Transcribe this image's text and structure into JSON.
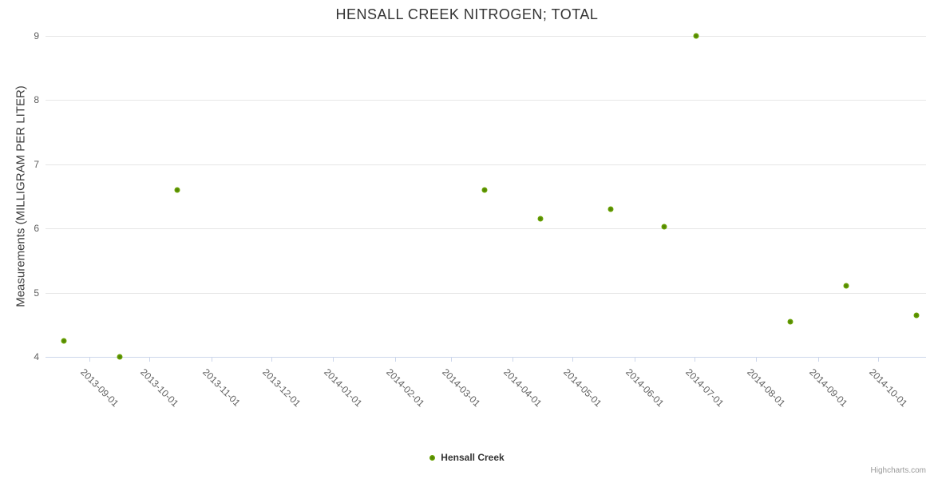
{
  "chart_data": {
    "type": "scatter",
    "title": "HENSALL CREEK NITROGEN; TOTAL",
    "xlabel": "",
    "ylabel": "Measurements (MILLIGRAM PER LITER)",
    "ylim": [
      4,
      9
    ],
    "yticks": [
      4,
      5,
      6,
      7,
      8,
      9
    ],
    "grid": true,
    "x_range": [
      "2013-08-10",
      "2014-10-25"
    ],
    "x_ticks": [
      "2013-09-01",
      "2013-10-01",
      "2013-11-01",
      "2013-12-01",
      "2014-01-01",
      "2014-02-01",
      "2014-03-01",
      "2014-04-01",
      "2014-05-01",
      "2014-06-01",
      "2014-07-01",
      "2014-08-01",
      "2014-09-01",
      "2014-10-01"
    ],
    "legend_position": "bottom-center",
    "series": [
      {
        "name": "Hensall Creek",
        "color": "#77b300",
        "points": [
          {
            "x": "2013-08-19",
            "y": 4.25
          },
          {
            "x": "2013-09-16",
            "y": 4.0
          },
          {
            "x": "2013-10-15",
            "y": 6.6
          },
          {
            "x": "2014-03-18",
            "y": 6.6
          },
          {
            "x": "2014-04-15",
            "y": 6.15
          },
          {
            "x": "2014-05-20",
            "y": 6.3
          },
          {
            "x": "2014-06-16",
            "y": 6.03
          },
          {
            "x": "2014-07-02",
            "y": 9.0
          },
          {
            "x": "2014-08-18",
            "y": 4.55
          },
          {
            "x": "2014-09-15",
            "y": 5.11
          },
          {
            "x": "2014-10-20",
            "y": 4.65
          }
        ]
      }
    ],
    "credits": "Highcharts.com"
  },
  "colors": {
    "grid": "#e6e6e6",
    "axis": "#ccd6eb",
    "tick_label": "#606060",
    "title": "#333333",
    "marker": "#77b300",
    "legend_text": "#333333",
    "credits": "#999999"
  }
}
